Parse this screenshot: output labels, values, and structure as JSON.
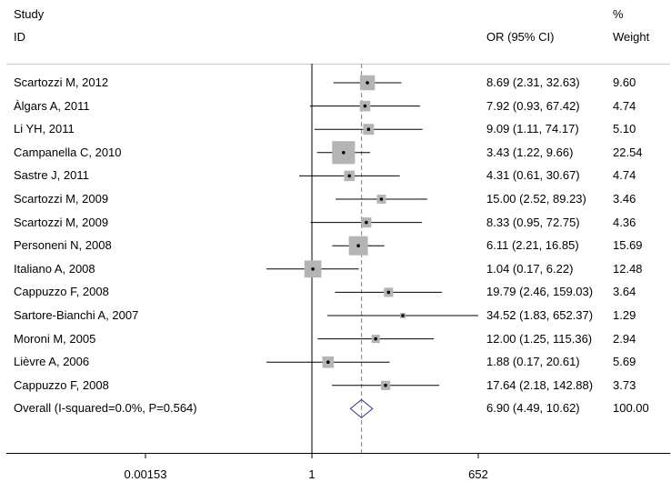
{
  "chart_data": {
    "type": "forest",
    "header": {
      "study_line1": "Study",
      "study_line2": "ID",
      "or_label": "OR (95% CI)",
      "weight_line1": "%",
      "weight_line2": "Weight"
    },
    "axis": {
      "scale": "log",
      "ticks": [
        {
          "value": 0.00153,
          "label": "0.00153"
        },
        {
          "value": 1,
          "label": "1"
        },
        {
          "value": 652,
          "label": "652"
        }
      ],
      "null_value": 1
    },
    "studies": [
      {
        "label": "Scartozzi M, 2012",
        "or": 8.69,
        "lo": 2.31,
        "hi": 32.63,
        "ci_text": "8.69 (2.31, 32.63)",
        "weight": "9.60",
        "w": 9.6
      },
      {
        "label": "Àlgars A, 2011",
        "or": 7.92,
        "lo": 0.93,
        "hi": 67.42,
        "ci_text": "7.92 (0.93, 67.42)",
        "weight": "4.74",
        "w": 4.74
      },
      {
        "label": "Li YH, 2011",
        "or": 9.09,
        "lo": 1.11,
        "hi": 74.17,
        "ci_text": "9.09 (1.11, 74.17)",
        "weight": "5.10",
        "w": 5.1
      },
      {
        "label": "Campanella C, 2010",
        "or": 3.43,
        "lo": 1.22,
        "hi": 9.66,
        "ci_text": "3.43 (1.22, 9.66)",
        "weight": "22.54",
        "w": 22.54
      },
      {
        "label": "Sastre J, 2011",
        "or": 4.31,
        "lo": 0.61,
        "hi": 30.67,
        "ci_text": "4.31 (0.61, 30.67)",
        "weight": "4.74",
        "w": 4.74
      },
      {
        "label": "Scartozzi M, 2009",
        "or": 15.0,
        "lo": 2.52,
        "hi": 89.23,
        "ci_text": "15.00 (2.52, 89.23)",
        "weight": "3.46",
        "w": 3.46
      },
      {
        "label": "Scartozzi M, 2009",
        "or": 8.33,
        "lo": 0.95,
        "hi": 72.75,
        "ci_text": "8.33 (0.95, 72.75)",
        "weight": "4.36",
        "w": 4.36
      },
      {
        "label": "Personeni N, 2008",
        "or": 6.11,
        "lo": 2.21,
        "hi": 16.85,
        "ci_text": "6.11 (2.21, 16.85)",
        "weight": "15.69",
        "w": 15.69
      },
      {
        "label": "Italiano A, 2008",
        "or": 1.04,
        "lo": 0.17,
        "hi": 6.22,
        "ci_text": "1.04 (0.17, 6.22)",
        "weight": "12.48",
        "w": 12.48
      },
      {
        "label": "Cappuzzo F, 2008",
        "or": 19.79,
        "lo": 2.46,
        "hi": 159.03,
        "ci_text": "19.79 (2.46, 159.03)",
        "weight": "3.64",
        "w": 3.64
      },
      {
        "label": "Sartore-Bianchi A, 2007",
        "or": 34.52,
        "lo": 1.83,
        "hi": 652.37,
        "ci_text": "34.52 (1.83, 652.37)",
        "weight": "1.29",
        "w": 1.29
      },
      {
        "label": "Moroni M, 2005",
        "or": 12.0,
        "lo": 1.25,
        "hi": 115.36,
        "ci_text": "12.00 (1.25, 115.36)",
        "weight": "2.94",
        "w": 2.94
      },
      {
        "label": "Lièvre A, 2006",
        "or": 1.88,
        "lo": 0.17,
        "hi": 20.61,
        "ci_text": "1.88 (0.17, 20.61)",
        "weight": "5.69",
        "w": 5.69
      },
      {
        "label": "Cappuzzo F, 2008",
        "or": 17.64,
        "lo": 2.18,
        "hi": 142.88,
        "ci_text": "17.64 (2.18, 142.88)",
        "weight": "3.73",
        "w": 3.73
      }
    ],
    "overall": {
      "label": "Overall  (I-squared=0.0%, P=0.564)",
      "or": 6.9,
      "lo": 4.49,
      "hi": 10.62,
      "ci_text": "6.90 (4.49, 10.62)",
      "weight": "100.00"
    },
    "colors": {
      "box": "#b4b4b4",
      "overall_line": "#c08080",
      "diamond": "#3a2b8a",
      "rule": "#c8c8c8"
    }
  }
}
